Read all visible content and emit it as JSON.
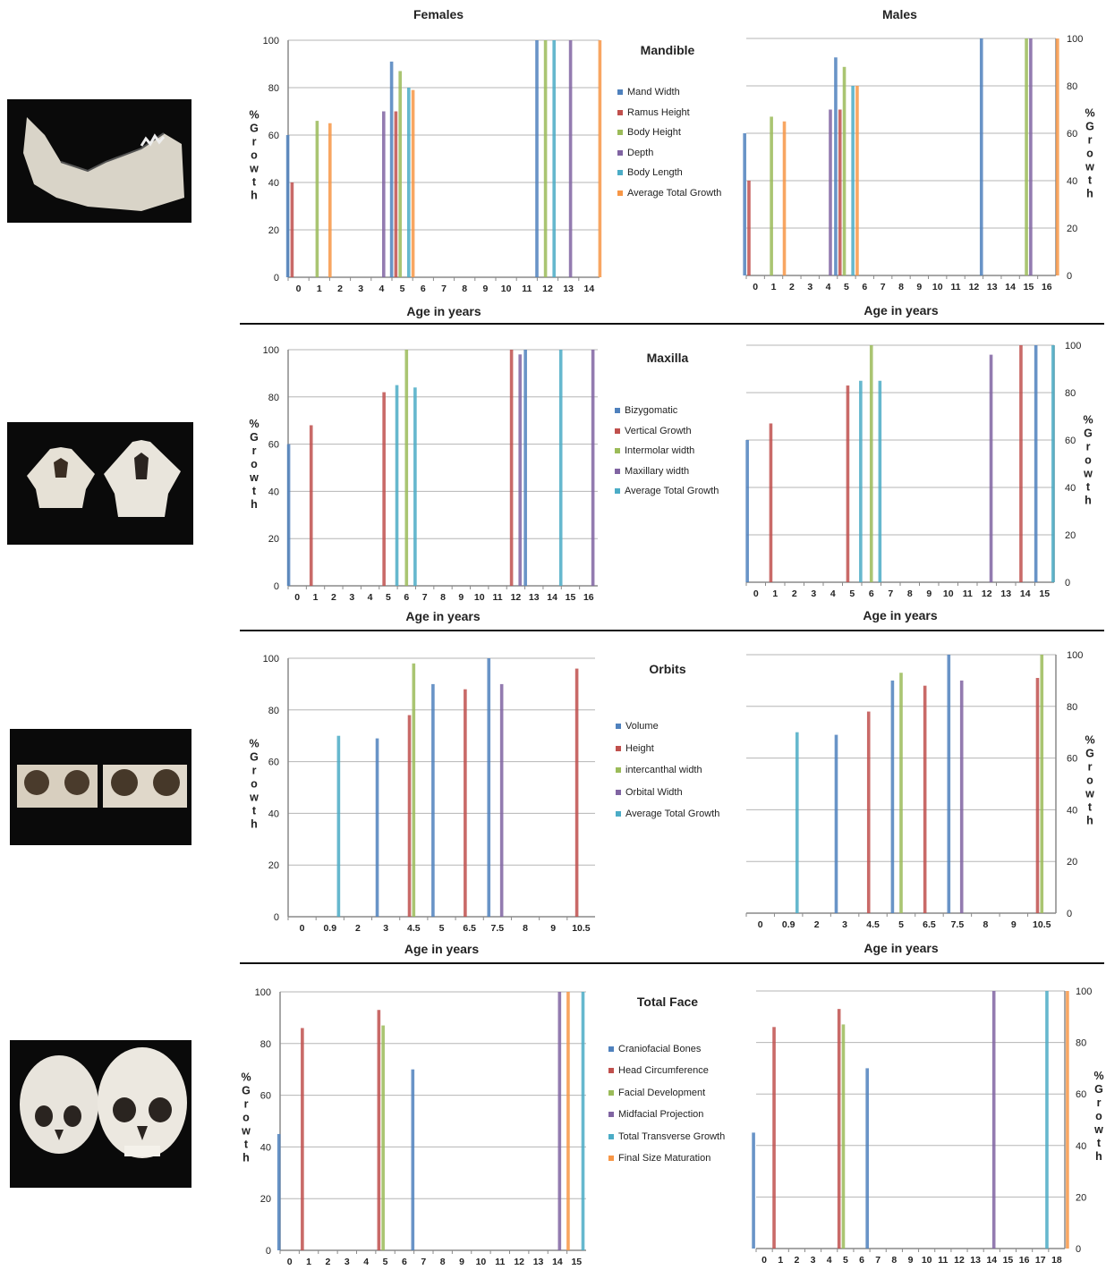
{
  "column_titles": {
    "females": "Females",
    "males": "Males"
  },
  "photos": [
    {
      "subject": "mandible"
    },
    {
      "subject": "maxilla"
    },
    {
      "subject": "orbits"
    },
    {
      "subject": "skull"
    }
  ],
  "colors": {
    "blue": "#4f81bd",
    "red": "#c0504d",
    "green": "#9bbb59",
    "purple": "#8064a2",
    "cyan": "#4bacc6",
    "orange": "#f79646"
  },
  "panels": [
    {
      "title": "Mandible",
      "legend": [
        {
          "label": "Mand Width",
          "color": "#4f81bd"
        },
        {
          "label": "Ramus Height",
          "color": "#c0504d"
        },
        {
          "label": "Body Height",
          "color": "#9bbb59"
        },
        {
          "label": "Depth",
          "color": "#8064a2"
        },
        {
          "label": "Body Length",
          "color": "#4bacc6"
        },
        {
          "label": "Average Total Growth",
          "color": "#f79646"
        }
      ]
    },
    {
      "title": "Maxilla",
      "legend": [
        {
          "label": "Bizygomatic",
          "color": "#4f81bd"
        },
        {
          "label": "Vertical Growth",
          "color": "#c0504d"
        },
        {
          "label": "Intermolar width",
          "color": "#9bbb59"
        },
        {
          "label": "Maxillary width",
          "color": "#8064a2"
        },
        {
          "label": "Average Total Growth",
          "color": "#4bacc6"
        }
      ]
    },
    {
      "title": "Orbits",
      "legend": [
        {
          "label": "Volume",
          "color": "#4f81bd"
        },
        {
          "label": "Height",
          "color": "#c0504d"
        },
        {
          "label": "intercanthal width",
          "color": "#9bbb59"
        },
        {
          "label": "Orbital Width",
          "color": "#8064a2"
        },
        {
          "label": "Average Total Growth",
          "color": "#4bacc6"
        }
      ]
    },
    {
      "title": "Total Face",
      "legend": [
        {
          "label": "Craniofacial Bones",
          "color": "#4f81bd"
        },
        {
          "label": "Head Circumference",
          "color": "#c0504d"
        },
        {
          "label": "Facial Development",
          "color": "#9bbb59"
        },
        {
          "label": "Midfacial Projection",
          "color": "#8064a2"
        },
        {
          "label": "Total Transverse Growth",
          "color": "#4bacc6"
        },
        {
          "label": "Final Size Maturation",
          "color": "#f79646"
        }
      ]
    }
  ],
  "chart_data": [
    {
      "id": "mandible-females",
      "type": "bar",
      "xlabel": "Age in years",
      "ylabel": "% Growth",
      "ylim": [
        0,
        100
      ],
      "yticks": [
        0,
        20,
        40,
        60,
        80,
        100
      ],
      "grid": true,
      "categories": [
        "0",
        "1",
        "2",
        "3",
        "4",
        "5",
        "6",
        "7",
        "8",
        "9",
        "10",
        "11",
        "12",
        "13",
        "14"
      ],
      "series": [
        {
          "name": "Mand Width",
          "color": "#4f81bd",
          "points": [
            {
              "x": "0",
              "y": 60
            },
            {
              "x": "5",
              "y": 91
            },
            {
              "x": "12",
              "y": 100
            }
          ]
        },
        {
          "name": "Ramus Height",
          "color": "#c0504d",
          "points": [
            {
              "x": "0",
              "y": 40
            },
            {
              "x": "5",
              "y": 70
            }
          ]
        },
        {
          "name": "Body Height",
          "color": "#9bbb59",
          "points": [
            {
              "x": "1",
              "y": 66
            },
            {
              "x": "5",
              "y": 87
            },
            {
              "x": "12",
              "y": 100
            }
          ]
        },
        {
          "name": "Depth",
          "color": "#8064a2",
          "points": [
            {
              "x": "4",
              "y": 70
            },
            {
              "x": "13",
              "y": 100
            }
          ]
        },
        {
          "name": "Body Length",
          "color": "#4bacc6",
          "points": [
            {
              "x": "5",
              "y": 80
            },
            {
              "x": "12",
              "y": 100
            }
          ]
        },
        {
          "name": "Average Total Growth",
          "color": "#f79646",
          "points": [
            {
              "x": "1",
              "y": 65
            },
            {
              "x": "5",
              "y": 79
            },
            {
              "x": "14",
              "y": 100
            }
          ]
        }
      ]
    },
    {
      "id": "mandible-males",
      "type": "bar",
      "xlabel": "Age in years",
      "ylabel": "% Growth",
      "ylim": [
        0,
        100
      ],
      "yticks": [
        0,
        20,
        40,
        60,
        80,
        100
      ],
      "grid": true,
      "categories": [
        "0",
        "1",
        "2",
        "3",
        "4",
        "5",
        "6",
        "7",
        "8",
        "9",
        "10",
        "11",
        "12",
        "13",
        "14",
        "15",
        "16"
      ],
      "series": [
        {
          "name": "Mand Width",
          "color": "#4f81bd",
          "points": [
            {
              "x": "0",
              "y": 60
            },
            {
              "x": "5",
              "y": 92
            },
            {
              "x": "13",
              "y": 100
            }
          ]
        },
        {
          "name": "Ramus Height",
          "color": "#c0504d",
          "points": [
            {
              "x": "0",
              "y": 40
            },
            {
              "x": "5",
              "y": 70
            }
          ]
        },
        {
          "name": "Body Height",
          "color": "#9bbb59",
          "points": [
            {
              "x": "1",
              "y": 67
            },
            {
              "x": "5",
              "y": 88
            },
            {
              "x": "15",
              "y": 100
            }
          ]
        },
        {
          "name": "Depth",
          "color": "#8064a2",
          "points": [
            {
              "x": "4",
              "y": 70
            },
            {
              "x": "15",
              "y": 100
            }
          ]
        },
        {
          "name": "Body Length",
          "color": "#4bacc6",
          "points": [
            {
              "x": "5",
              "y": 80
            }
          ]
        },
        {
          "name": "Average Total Growth",
          "color": "#f79646",
          "points": [
            {
              "x": "1",
              "y": 65
            },
            {
              "x": "5",
              "y": 80
            },
            {
              "x": "16",
              "y": 100
            }
          ]
        }
      ]
    },
    {
      "id": "maxilla-females",
      "type": "bar",
      "xlabel": "Age in years",
      "ylabel": "% Growth",
      "ylim": [
        0,
        100
      ],
      "yticks": [
        0,
        20,
        40,
        60,
        80,
        100
      ],
      "grid": true,
      "categories": [
        "0",
        "1",
        "2",
        "3",
        "4",
        "5",
        "6",
        "7",
        "8",
        "9",
        "10",
        "11",
        "12",
        "13",
        "14",
        "15",
        "16"
      ],
      "series": [
        {
          "name": "Bizygomatic",
          "color": "#4f81bd",
          "points": [
            {
              "x": "0",
              "y": 60
            },
            {
              "x": "13",
              "y": 100
            }
          ]
        },
        {
          "name": "Vertical Growth",
          "color": "#c0504d",
          "points": [
            {
              "x": "1",
              "y": 68
            },
            {
              "x": "5",
              "y": 82
            },
            {
              "x": "12",
              "y": 100
            }
          ]
        },
        {
          "name": "Intermolar width",
          "color": "#9bbb59",
          "points": [
            {
              "x": "6",
              "y": 100
            }
          ]
        },
        {
          "name": "Maxillary width",
          "color": "#8064a2",
          "points": [
            {
              "x": "12",
              "y": 98
            },
            {
              "x": "16",
              "y": 100
            }
          ]
        },
        {
          "name": "Average Total Growth",
          "color": "#4bacc6",
          "points": [
            {
              "x": "5",
              "y": 85
            },
            {
              "x": "6",
              "y": 84
            },
            {
              "x": "14",
              "y": 100
            }
          ]
        }
      ]
    },
    {
      "id": "maxilla-males",
      "type": "bar",
      "xlabel": "Age in years",
      "ylabel": "% Growth",
      "ylim": [
        0,
        100
      ],
      "yticks": [
        0,
        20,
        40,
        60,
        80,
        100
      ],
      "grid": true,
      "categories": [
        "0",
        "1",
        "2",
        "3",
        "4",
        "5",
        "6",
        "7",
        "8",
        "9",
        "10",
        "11",
        "12",
        "13",
        "14",
        "15"
      ],
      "series": [
        {
          "name": "Bizygomatic",
          "color": "#4f81bd",
          "points": [
            {
              "x": "0",
              "y": 60
            },
            {
              "x": "15",
              "y": 100
            }
          ]
        },
        {
          "name": "Vertical Growth",
          "color": "#c0504d",
          "points": [
            {
              "x": "1",
              "y": 67
            },
            {
              "x": "5",
              "y": 83
            },
            {
              "x": "14",
              "y": 100
            }
          ]
        },
        {
          "name": "Intermolar width",
          "color": "#9bbb59",
          "points": [
            {
              "x": "6",
              "y": 100
            }
          ]
        },
        {
          "name": "Maxillary width",
          "color": "#8064a2",
          "points": [
            {
              "x": "12",
              "y": 96
            }
          ]
        },
        {
          "name": "Average Total Growth",
          "color": "#4bacc6",
          "points": [
            {
              "x": "5",
              "y": 85
            },
            {
              "x": "6",
              "y": 85
            },
            {
              "x": "15",
              "y": 100
            }
          ]
        }
      ]
    },
    {
      "id": "orbits-females",
      "type": "bar",
      "xlabel": "Age in years",
      "ylabel": "% Growth",
      "ylim": [
        0,
        100
      ],
      "yticks": [
        0,
        20,
        40,
        60,
        80,
        100
      ],
      "grid": true,
      "categories": [
        "0",
        "0.9",
        "2",
        "3",
        "4.5",
        "5",
        "6.5",
        "7.5",
        "8",
        "9",
        "10.5"
      ],
      "series": [
        {
          "name": "Volume",
          "color": "#4f81bd",
          "points": [
            {
              "x": "3",
              "y": 69
            },
            {
              "x": "5",
              "y": 90
            },
            {
              "x": "7.5",
              "y": 100
            }
          ]
        },
        {
          "name": "Height",
          "color": "#c0504d",
          "points": [
            {
              "x": "4.5",
              "y": 78
            },
            {
              "x": "6.5",
              "y": 88
            },
            {
              "x": "10.5",
              "y": 96
            }
          ]
        },
        {
          "name": "intercanthal width",
          "color": "#9bbb59",
          "points": [
            {
              "x": "4.5",
              "y": 98
            }
          ]
        },
        {
          "name": "Orbital Width",
          "color": "#8064a2",
          "points": [
            {
              "x": "7.5",
              "y": 90
            }
          ]
        },
        {
          "name": "Average Total Growth",
          "color": "#4bacc6",
          "points": [
            {
              "x": "0.9",
              "y": 70
            }
          ]
        }
      ]
    },
    {
      "id": "orbits-males",
      "type": "bar",
      "xlabel": "Age in years",
      "ylabel": "% Growth",
      "ylim": [
        0,
        100
      ],
      "yticks": [
        0,
        20,
        40,
        60,
        80,
        100
      ],
      "grid": true,
      "categories": [
        "0",
        "0.9",
        "2",
        "3",
        "4.5",
        "5",
        "6.5",
        "7.5",
        "8",
        "9",
        "10.5"
      ],
      "series": [
        {
          "name": "Volume",
          "color": "#4f81bd",
          "points": [
            {
              "x": "3",
              "y": 69
            },
            {
              "x": "5",
              "y": 90
            },
            {
              "x": "7.5",
              "y": 100
            }
          ]
        },
        {
          "name": "Height",
          "color": "#c0504d",
          "points": [
            {
              "x": "4.5",
              "y": 78
            },
            {
              "x": "6.5",
              "y": 88
            },
            {
              "x": "10.5",
              "y": 91
            }
          ]
        },
        {
          "name": "intercanthal width",
          "color": "#9bbb59",
          "points": [
            {
              "x": "5",
              "y": 93
            },
            {
              "x": "10.5",
              "y": 100
            }
          ]
        },
        {
          "name": "Orbital Width",
          "color": "#8064a2",
          "points": [
            {
              "x": "7.5",
              "y": 90
            }
          ]
        },
        {
          "name": "Average Total Growth",
          "color": "#4bacc6",
          "points": [
            {
              "x": "0.9",
              "y": 70
            }
          ]
        }
      ]
    },
    {
      "id": "total-face-females",
      "type": "bar",
      "xlabel": "",
      "ylabel": "% Growth",
      "ylim": [
        0,
        100
      ],
      "yticks": [
        0,
        20,
        40,
        60,
        80,
        100
      ],
      "grid": true,
      "categories": [
        "0",
        "1",
        "2",
        "3",
        "4",
        "5",
        "6",
        "7",
        "8",
        "9",
        "10",
        "11",
        "12",
        "13",
        "14",
        "15"
      ],
      "series": [
        {
          "name": "Craniofacial Bones",
          "color": "#4f81bd",
          "points": [
            {
              "x": "0",
              "y": 45
            },
            {
              "x": "7",
              "y": 70
            }
          ]
        },
        {
          "name": "Head Circumference",
          "color": "#c0504d",
          "points": [
            {
              "x": "1",
              "y": 86
            },
            {
              "x": "5",
              "y": 93
            }
          ]
        },
        {
          "name": "Facial Development",
          "color": "#9bbb59",
          "points": [
            {
              "x": "5",
              "y": 87
            }
          ]
        },
        {
          "name": "Midfacial Projection",
          "color": "#8064a2",
          "points": [
            {
              "x": "14",
              "y": 100
            }
          ]
        },
        {
          "name": "Total Transverse Growth",
          "color": "#4bacc6",
          "points": [
            {
              "x": "15",
              "y": 100
            }
          ]
        },
        {
          "name": "Final Size Maturation",
          "color": "#f79646",
          "points": [
            {
              "x": "14",
              "y": 100
            }
          ]
        }
      ]
    },
    {
      "id": "total-face-males",
      "type": "bar",
      "xlabel": "",
      "ylabel": "% Growth",
      "ylim": [
        0,
        100
      ],
      "yticks": [
        0,
        20,
        40,
        60,
        80,
        100
      ],
      "grid": true,
      "categories": [
        "0",
        "1",
        "2",
        "3",
        "4",
        "5",
        "6",
        "7",
        "8",
        "9",
        "10",
        "11",
        "12",
        "13",
        "14",
        "15",
        "16",
        "17",
        "18"
      ],
      "series": [
        {
          "name": "Craniofacial Bones",
          "color": "#4f81bd",
          "points": [
            {
              "x": "0",
              "y": 45
            },
            {
              "x": "7",
              "y": 70
            }
          ]
        },
        {
          "name": "Head Circumference",
          "color": "#c0504d",
          "points": [
            {
              "x": "1",
              "y": 86
            },
            {
              "x": "5",
              "y": 93
            }
          ]
        },
        {
          "name": "Facial Development",
          "color": "#9bbb59",
          "points": [
            {
              "x": "5",
              "y": 87
            }
          ]
        },
        {
          "name": "Midfacial Projection",
          "color": "#8064a2",
          "points": [
            {
              "x": "14",
              "y": 100
            }
          ]
        },
        {
          "name": "Total Transverse Growth",
          "color": "#4bacc6",
          "points": [
            {
              "x": "17",
              "y": 100
            }
          ]
        },
        {
          "name": "Final Size Maturation",
          "color": "#f79646",
          "points": [
            {
              "x": "18",
              "y": 100
            }
          ]
        }
      ]
    }
  ]
}
